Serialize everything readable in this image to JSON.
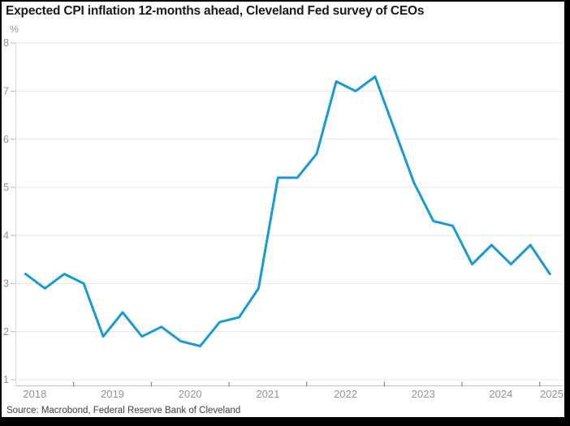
{
  "header": {
    "title": "Expected CPI inflation 12-months ahead, Cleveland Fed survey of CEOs"
  },
  "source": "Source: Macrobond, Federal Reserve Bank of Cleveland",
  "colors": {
    "line": "#189ad6",
    "grid": "#e7e7e7",
    "axis_vertical": "#dcdcdc",
    "axis_baseline": "#c2c2c2",
    "x_tick": "#8a8a8a",
    "y_tick_dash": "#c4c4c4",
    "tick_label": "#939393",
    "title_text": "#1a1a1a",
    "source_text": "#3f3f3f",
    "frame": "#000000",
    "background": "#ffffff"
  },
  "chart_data": {
    "type": "line",
    "title": "Expected CPI inflation 12-months ahead, Cleveland Fed survey of CEOs",
    "xlabel": "",
    "ylabel": "%",
    "legend": "none",
    "grid": "horizontal",
    "ylim": [
      1,
      8
    ],
    "y_ticks": [
      1,
      2,
      3,
      4,
      5,
      6,
      7,
      8
    ],
    "x_tick_labels": [
      "2018",
      "2019",
      "2020",
      "2021",
      "2022",
      "2023",
      "2024",
      "2025"
    ],
    "series_name": "Expected CPI inflation 12-months ahead (%)",
    "quarters": [
      "2018Q2",
      "2018Q3",
      "2018Q4",
      "2019Q1",
      "2019Q2",
      "2019Q3",
      "2019Q4",
      "2020Q1",
      "2020Q2",
      "2020Q3",
      "2020Q4",
      "2021Q1",
      "2021Q2",
      "2021Q3",
      "2021Q4",
      "2022Q1",
      "2022Q2",
      "2022Q3",
      "2022Q4",
      "2023Q1",
      "2023Q2",
      "2023Q3",
      "2023Q4",
      "2024Q1",
      "2024Q2",
      "2024Q3",
      "2024Q4",
      "2025Q1"
    ],
    "values": [
      3.2,
      2.9,
      3.2,
      3.0,
      1.9,
      2.4,
      1.9,
      2.1,
      1.8,
      1.7,
      2.2,
      2.3,
      2.9,
      5.2,
      5.2,
      5.7,
      7.2,
      7.0,
      7.3,
      6.2,
      5.1,
      4.3,
      4.2,
      3.4,
      3.8,
      3.4,
      3.8,
      3.2
    ]
  }
}
